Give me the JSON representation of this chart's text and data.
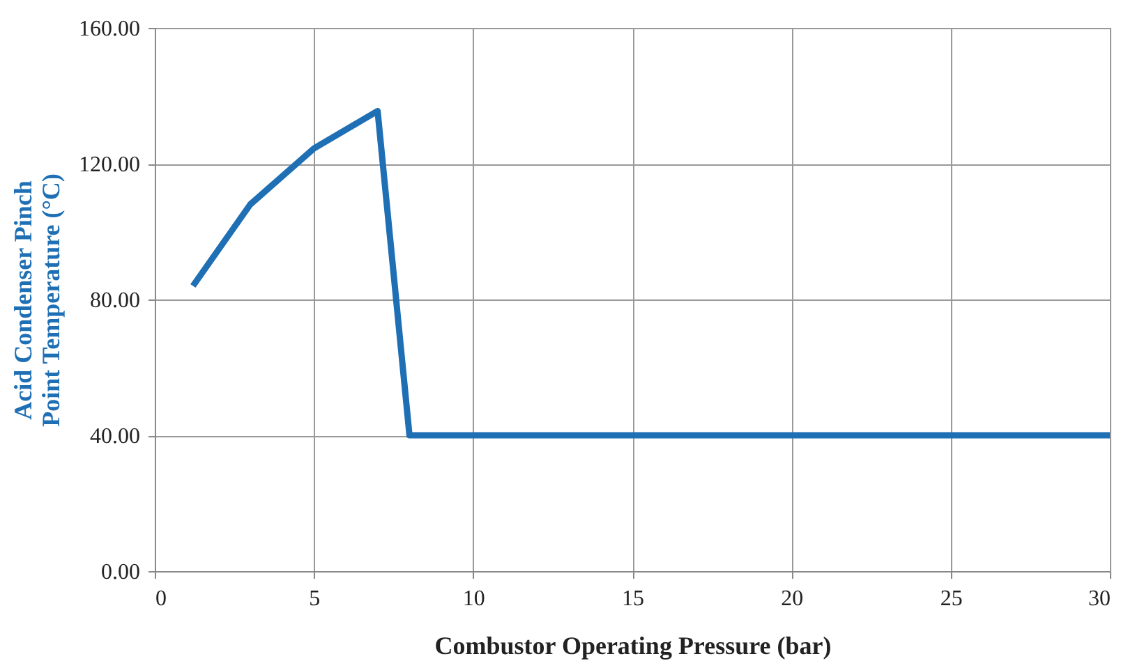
{
  "chart_data": {
    "type": "line",
    "xlabel": "Combustor Operating Pressure (bar)",
    "ylabel": "Acid Condenser Pinch\nPoint Temperature (°C)",
    "x": [
      1.2,
      3,
      5,
      7,
      8,
      30
    ],
    "series": [
      {
        "color": "#1f6fb5",
        "values": [
          84,
          108,
          124.5,
          135.5,
          40,
          40
        ]
      }
    ],
    "xlim": [
      0,
      30
    ],
    "xticks": [
      0,
      5,
      10,
      15,
      20,
      25,
      30
    ],
    "ylim": [
      0,
      160
    ],
    "yticks": [
      {
        "value": 0,
        "label": "0.00"
      },
      {
        "value": 40,
        "label": "40.00"
      },
      {
        "value": 80,
        "label": "80.00"
      },
      {
        "value": 120,
        "label": "120.00"
      },
      {
        "value": 160,
        "label": "160.00"
      }
    ],
    "grid": true,
    "marker": "none",
    "line_style": "solid"
  }
}
